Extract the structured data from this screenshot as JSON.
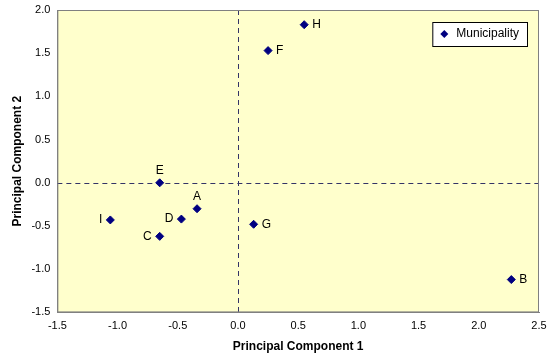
{
  "chart_data": {
    "type": "scatter",
    "x_label": "Principal Component 1",
    "y_label": "Principal Component 2",
    "series": [
      {
        "name": "Municipality",
        "color": "#000080",
        "marker": "diamond",
        "labels": [
          "A",
          "B",
          "C",
          "D",
          "E",
          "F",
          "G",
          "H",
          "I"
        ],
        "x": [
          -0.34,
          2.27,
          -0.65,
          -0.47,
          -0.65,
          0.25,
          0.13,
          0.55,
          -1.06
        ],
        "values": [
          -0.3,
          -1.12,
          -0.62,
          -0.42,
          0.0,
          1.53,
          -0.48,
          1.83,
          -0.43
        ]
      }
    ],
    "xlim": [
      -1.5,
      2.5
    ],
    "xticks": [
      -1.5,
      {
        "value": -1,
        "label": "-1.0"
      },
      -0.5,
      {
        "value": 0,
        "label": "0.0"
      },
      0.5,
      {
        "value": 1,
        "label": "1.0"
      },
      1.5,
      {
        "value": 2,
        "label": "2.0"
      },
      2.5
    ],
    "ylim": [
      -1.5,
      2.0
    ],
    "yticks": [
      -1.5,
      {
        "value": -1,
        "label": "-1.0"
      },
      -0.5,
      {
        "value": 0,
        "label": "0.0"
      },
      0.5,
      {
        "value": 1,
        "label": "1.0"
      },
      1.5,
      {
        "value": 2,
        "label": "2.0"
      }
    ],
    "grid": false,
    "legend": "upper right"
  }
}
